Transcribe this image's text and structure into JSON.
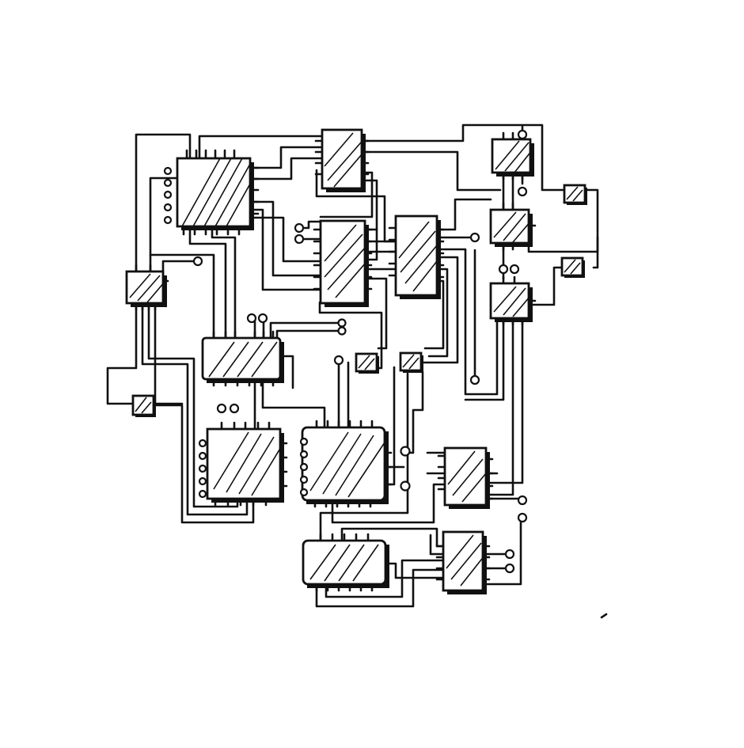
{
  "diagram": {
    "kind": "hand-drawn circuit schematic",
    "style": "black ink sketch on white",
    "colors": {
      "ink": "#111111",
      "paper": "#ffffff"
    },
    "component_count": 22,
    "components": [
      "square-ic",
      "dip-ic",
      "small-ic",
      "dip-ic",
      "dip-ic",
      "small-ic",
      "small-ic",
      "small-ic",
      "small-ic",
      "tiny-ic",
      "tiny-ic",
      "small-ic",
      "dip-ic",
      "tiny-ic",
      "tiny-ic",
      "dip-ic",
      "tiny-ic",
      "square-ic",
      "square-ic",
      "dip-ic",
      "dip-ic",
      "dip-ic"
    ]
  }
}
